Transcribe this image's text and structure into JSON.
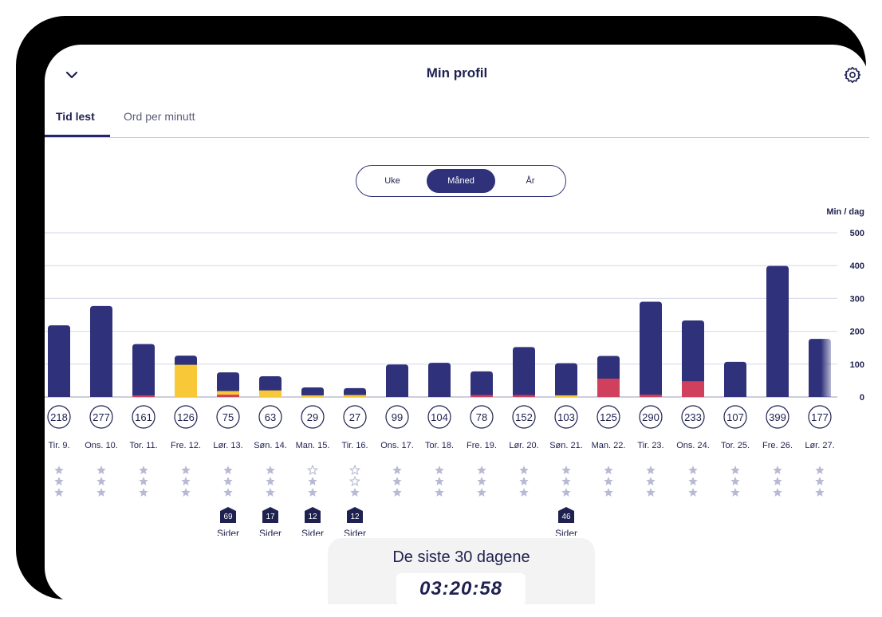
{
  "header": {
    "title": "Min profil",
    "back_icon": "chevron-down-icon",
    "settings_icon": "gear-icon"
  },
  "tabs": [
    {
      "label": "Tid lest",
      "active": true
    },
    {
      "label": "Ord per minutt",
      "active": false
    }
  ],
  "period": {
    "options": [
      "Uke",
      "Måned",
      "År"
    ],
    "selected": "Måned"
  },
  "colors": {
    "navy": "#2f317a",
    "yellow": "#f9c838",
    "red": "#d03f5c",
    "text": "#1f2150",
    "star": "#b8bad3"
  },
  "chart_data": {
    "type": "bar",
    "ylabel": "Min / dag",
    "ylim": [
      0,
      500
    ],
    "yticks": [
      "500",
      "400",
      "300",
      "200",
      "100",
      "0"
    ],
    "days": [
      {
        "label": "Tir. 9.",
        "total": 218,
        "red": 0,
        "yellow": 0,
        "stars": [
          "full",
          "full",
          "full"
        ]
      },
      {
        "label": "Ons. 10.",
        "total": 277,
        "red": 0,
        "yellow": 0,
        "stars": [
          "full",
          "full",
          "full"
        ]
      },
      {
        "label": "Tor. 11.",
        "total": 161,
        "red": 5,
        "yellow": 0,
        "stars": [
          "full",
          "full",
          "full"
        ]
      },
      {
        "label": "Fre. 12.",
        "total": 126,
        "red": 0,
        "yellow": 98,
        "stars": [
          "full",
          "full",
          "full"
        ]
      },
      {
        "label": "Lør. 13.",
        "total": 75,
        "red": 7,
        "yellow": 18,
        "stars": [
          "full",
          "full",
          "full"
        ],
        "pages": "69",
        "pages_label": "Sider"
      },
      {
        "label": "Søn. 14.",
        "total": 63,
        "red": 0,
        "yellow": 20,
        "stars": [
          "full",
          "full",
          "full"
        ],
        "pages": "17",
        "pages_label": "Sider"
      },
      {
        "label": "Man. 15.",
        "total": 29,
        "red": 0,
        "yellow": 5,
        "stars": [
          "outline",
          "full",
          "full"
        ],
        "pages": "12",
        "pages_label": "Sider"
      },
      {
        "label": "Tir. 16.",
        "total": 27,
        "red": 0,
        "yellow": 6,
        "stars": [
          "outline",
          "outline",
          "full"
        ],
        "pages": "12",
        "pages_label": "Sider"
      },
      {
        "label": "Ons. 17.",
        "total": 99,
        "red": 0,
        "yellow": 0,
        "stars": [
          "full",
          "full",
          "full"
        ]
      },
      {
        "label": "Tor. 18.",
        "total": 104,
        "red": 0,
        "yellow": 0,
        "stars": [
          "full",
          "full",
          "full"
        ]
      },
      {
        "label": "Fre. 19.",
        "total": 78,
        "red": 6,
        "yellow": 0,
        "stars": [
          "full",
          "full",
          "full"
        ]
      },
      {
        "label": "Lør. 20.",
        "total": 152,
        "red": 6,
        "yellow": 0,
        "stars": [
          "full",
          "full",
          "full"
        ]
      },
      {
        "label": "Søn. 21.",
        "total": 103,
        "red": 0,
        "yellow": 5,
        "stars": [
          "full",
          "full",
          "full"
        ],
        "pages": "46",
        "pages_label": "Sider"
      },
      {
        "label": "Man. 22.",
        "total": 125,
        "red": 56,
        "yellow": 0,
        "stars": [
          "full",
          "full",
          "full"
        ]
      },
      {
        "label": "Tir. 23.",
        "total": 290,
        "red": 7,
        "yellow": 0,
        "stars": [
          "full",
          "full",
          "full"
        ]
      },
      {
        "label": "Ons. 24.",
        "total": 233,
        "red": 48,
        "yellow": 0,
        "stars": [
          "full",
          "full",
          "full"
        ]
      },
      {
        "label": "Tor. 25.",
        "total": 107,
        "red": 0,
        "yellow": 0,
        "stars": [
          "full",
          "full",
          "full"
        ]
      },
      {
        "label": "Fre. 26.",
        "total": 399,
        "red": 0,
        "yellow": 0,
        "stars": [
          "full",
          "full",
          "full"
        ]
      },
      {
        "label": "Lør. 27.",
        "total": 177,
        "red": 0,
        "yellow": 0,
        "stars": [
          "full",
          "full",
          "full"
        ]
      }
    ]
  },
  "summary": {
    "title": "De siste 30 dagene",
    "time": "03:20:58"
  }
}
